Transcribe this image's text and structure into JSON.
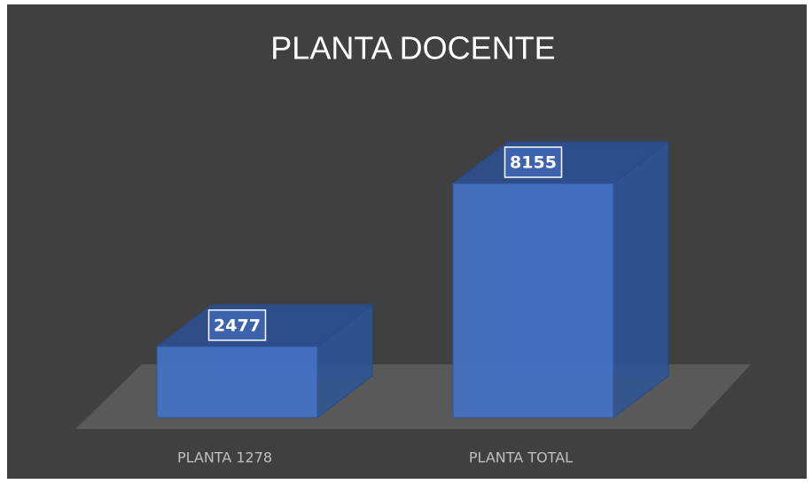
{
  "chart_data": {
    "type": "bar3d",
    "title": "PLANTA DOCENTE",
    "categories": [
      "PLANTA 1278",
      "PLANTA TOTAL"
    ],
    "values": [
      2477,
      8155
    ],
    "color": "#4472c4"
  }
}
